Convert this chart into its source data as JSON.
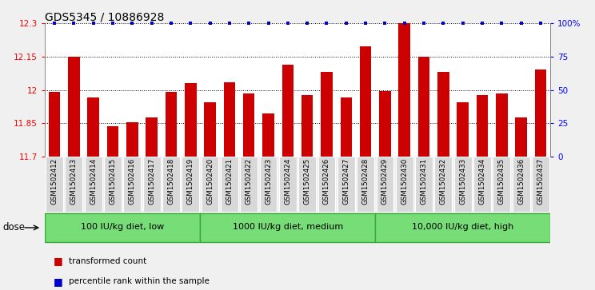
{
  "title": "GDS5345 / 10886928",
  "samples": [
    "GSM1502412",
    "GSM1502413",
    "GSM1502414",
    "GSM1502415",
    "GSM1502416",
    "GSM1502417",
    "GSM1502418",
    "GSM1502419",
    "GSM1502420",
    "GSM1502421",
    "GSM1502422",
    "GSM1502423",
    "GSM1502424",
    "GSM1502425",
    "GSM1502426",
    "GSM1502427",
    "GSM1502428",
    "GSM1502429",
    "GSM1502430",
    "GSM1502431",
    "GSM1502432",
    "GSM1502433",
    "GSM1502434",
    "GSM1502435",
    "GSM1502436",
    "GSM1502437"
  ],
  "bar_values": [
    11.99,
    12.148,
    11.965,
    11.835,
    11.855,
    11.875,
    11.99,
    12.03,
    11.945,
    12.035,
    11.985,
    11.895,
    12.115,
    11.975,
    12.08,
    11.965,
    12.195,
    11.995,
    12.3,
    12.148,
    12.08,
    11.945,
    11.975,
    11.985,
    11.875,
    12.09
  ],
  "percentile_values": [
    100,
    100,
    100,
    100,
    100,
    100,
    100,
    100,
    100,
    100,
    100,
    100,
    100,
    100,
    100,
    100,
    100,
    100,
    100,
    100,
    100,
    100,
    100,
    100,
    100,
    100
  ],
  "ylim_left": [
    11.7,
    12.3
  ],
  "ylim_right": [
    0,
    100
  ],
  "yticks_left": [
    11.7,
    11.85,
    12.0,
    12.15,
    12.3
  ],
  "yticks_right": [
    0,
    25,
    50,
    75,
    100
  ],
  "ytick_labels_left": [
    "11.7",
    "11.85",
    "12",
    "12.15",
    "12.3"
  ],
  "ytick_labels_right": [
    "0",
    "25",
    "50",
    "75",
    "100%"
  ],
  "bar_color": "#cc0000",
  "percentile_color": "#0000cc",
  "dotted_line_values": [
    11.85,
    12.0,
    12.15
  ],
  "groups": [
    {
      "label": "100 IU/kg diet, low",
      "start": 0,
      "end": 8
    },
    {
      "label": "1000 IU/kg diet, medium",
      "start": 8,
      "end": 17
    },
    {
      "label": "10,000 IU/kg diet, high",
      "start": 17,
      "end": 26
    }
  ],
  "group_color": "#77dd77",
  "group_edge_color": "#33aa33",
  "dose_label": "dose",
  "legend_items": [
    {
      "label": "transformed count",
      "color": "#cc0000"
    },
    {
      "label": "percentile rank within the sample",
      "color": "#0000cc"
    }
  ],
  "fig_bg": "#f0f0f0",
  "plot_bg": "#ffffff",
  "ticklabel_bg": "#d8d8d8"
}
